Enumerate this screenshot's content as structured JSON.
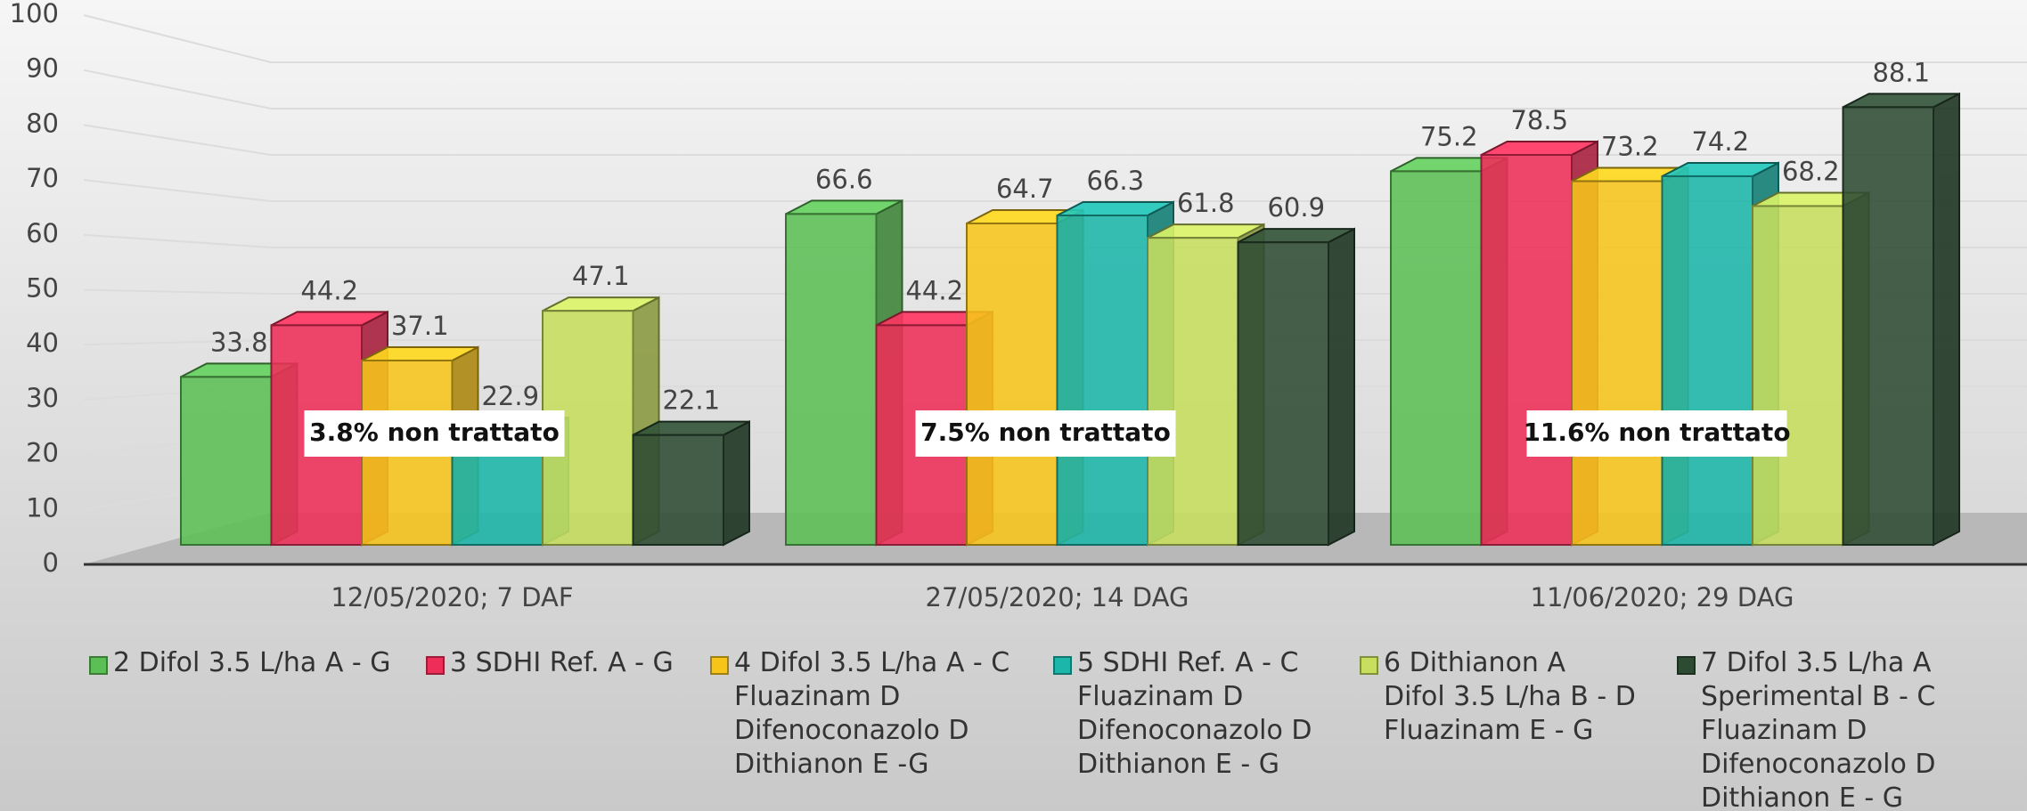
{
  "chart_data": {
    "type": "bar3d",
    "categories": [
      "12/05/2020; 7 DAF",
      "27/05/2020; 14 DAG",
      "11/06/2020; 29 DAG"
    ],
    "series": [
      {
        "name": "2 Difol 3.5 L/ha A - G",
        "color": "#5cbf55",
        "values": [
          33.8,
          66.6,
          75.2
        ]
      },
      {
        "name": "3 SDHI Ref. A - G",
        "color": "#ee2e58",
        "values": [
          44.2,
          44.2,
          78.5
        ]
      },
      {
        "name": "4 Difol 3.5 L/ha A - C\nFluazinam D\nDifenoconazolo D\nDithianon E -G",
        "color": "#f7c51a",
        "values": [
          37.1,
          64.7,
          73.2
        ]
      },
      {
        "name": "5 SDHI Ref. A - C\nFluazinam D\nDifenoconazolo D\nDithianon E - G",
        "color": "#1cb6aa",
        "values": [
          22.9,
          66.3,
          74.2
        ]
      },
      {
        "name": "6 Dithianon A\nDifol 3.5 L/ha B - D\nFluazinam E - G",
        "color": "#c7de5e",
        "values": [
          47.1,
          61.8,
          68.2
        ]
      },
      {
        "name": "7 Difol 3.5 L/ha A\nSperimental B - C\nFluazinam D\nDifenoconazolo D\nDithianon E - G",
        "color": "#2d4b33",
        "values": [
          22.1,
          60.9,
          88.1
        ]
      }
    ],
    "annotations": [
      "3.8% non trattato",
      "7.5% non trattato",
      "11.6% non trattato"
    ],
    "ylim": [
      0,
      100
    ],
    "yticks": [
      0,
      10,
      20,
      30,
      40,
      50,
      60,
      70,
      80,
      90,
      100
    ],
    "grid": true
  }
}
